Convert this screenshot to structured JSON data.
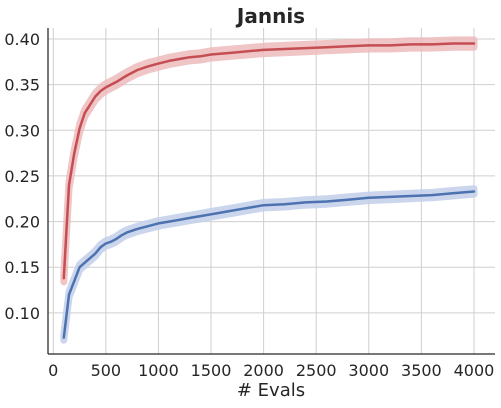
{
  "chart_data": {
    "type": "line",
    "title": "Jannis",
    "xlabel": "# Evals",
    "ylabel": "",
    "xlim": [
      -50,
      4200
    ],
    "ylim": [
      0.055,
      0.412
    ],
    "xticks": [
      0,
      500,
      1000,
      1500,
      2000,
      2500,
      3000,
      3500,
      4000
    ],
    "yticks": [
      0.1,
      0.15,
      0.2,
      0.25,
      0.3,
      0.35,
      0.4
    ],
    "xtick_labels": [
      "0",
      "500",
      "1000",
      "1500",
      "2000",
      "2500",
      "3000",
      "3500",
      "4000"
    ],
    "ytick_labels": [
      "0.10",
      "0.15",
      "0.20",
      "0.25",
      "0.30",
      "0.35",
      "0.40"
    ],
    "grid": true,
    "legend": "none",
    "series": [
      {
        "color": "#c44e52",
        "band_color": "#eebbbd",
        "band_width": 0.004,
        "x": [
          100,
          150,
          200,
          250,
          300,
          350,
          400,
          450,
          500,
          600,
          700,
          800,
          900,
          1000,
          1100,
          1200,
          1300,
          1400,
          1500,
          1600,
          1700,
          1800,
          1900,
          2000,
          2200,
          2400,
          2600,
          2800,
          3000,
          3200,
          3400,
          3600,
          3800,
          4000
        ],
        "y": [
          0.138,
          0.24,
          0.275,
          0.302,
          0.319,
          0.328,
          0.337,
          0.343,
          0.347,
          0.353,
          0.36,
          0.366,
          0.37,
          0.373,
          0.376,
          0.378,
          0.38,
          0.381,
          0.383,
          0.384,
          0.385,
          0.386,
          0.387,
          0.388,
          0.389,
          0.39,
          0.391,
          0.392,
          0.393,
          0.393,
          0.394,
          0.394,
          0.395,
          0.395
        ]
      },
      {
        "color": "#4c72b0",
        "band_color": "#c3d0ea",
        "band_width": 0.003,
        "x": [
          100,
          150,
          200,
          250,
          300,
          350,
          400,
          450,
          500,
          550,
          600,
          650,
          700,
          750,
          800,
          900,
          1000,
          1100,
          1200,
          1300,
          1400,
          1500,
          1600,
          1700,
          1800,
          1900,
          2000,
          2200,
          2400,
          2600,
          2800,
          3000,
          3200,
          3400,
          3600,
          3800,
          4000
        ],
        "y": [
          0.073,
          0.12,
          0.135,
          0.15,
          0.155,
          0.16,
          0.165,
          0.172,
          0.176,
          0.178,
          0.181,
          0.185,
          0.188,
          0.19,
          0.192,
          0.195,
          0.198,
          0.2,
          0.202,
          0.204,
          0.206,
          0.208,
          0.21,
          0.212,
          0.214,
          0.216,
          0.218,
          0.219,
          0.221,
          0.222,
          0.224,
          0.226,
          0.227,
          0.228,
          0.229,
          0.231,
          0.233
        ]
      }
    ]
  }
}
